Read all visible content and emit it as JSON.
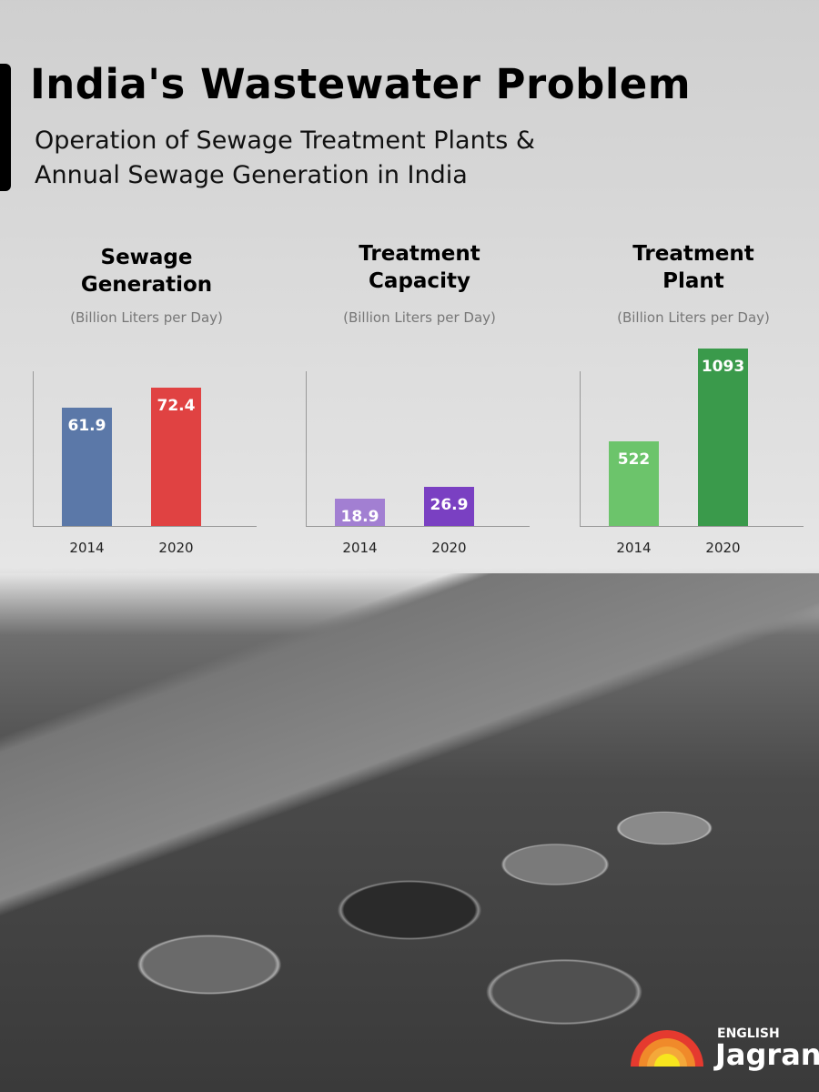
{
  "header": {
    "title": "India's Wastewater Problem",
    "subtitle_line1": "Operation of Sewage Treatment Plants &",
    "subtitle_line2": "Annual Sewage Generation in India"
  },
  "chart_data": [
    {
      "type": "bar",
      "title_line1": "Sewage",
      "title_line2": "Generation",
      "unit": "(Billion Liters per Day)",
      "categories": [
        "2014",
        "2020"
      ],
      "values": [
        61.9,
        72.4
      ],
      "colors": [
        "#5b78a8",
        "#e04242"
      ],
      "grid": false
    },
    {
      "type": "bar",
      "title_line1": "Treatment",
      "title_line2": "Capacity",
      "unit": "(Billion Liters per Day)",
      "categories": [
        "2014",
        "2020"
      ],
      "values": [
        18.9,
        26.9
      ],
      "colors": [
        "#a27fd2",
        "#7a40c2"
      ],
      "grid": false
    },
    {
      "type": "bar",
      "title_line1": "Treatment",
      "title_line2": "Plant",
      "unit": "(Billion Liters per Day)",
      "categories": [
        "2014",
        "2020"
      ],
      "values": [
        522,
        1093
      ],
      "colors": [
        "#6cc46b",
        "#3a9a4b"
      ],
      "grid": false
    }
  ],
  "logo": {
    "line1": "ENGLISH",
    "line2": "Jagran"
  }
}
